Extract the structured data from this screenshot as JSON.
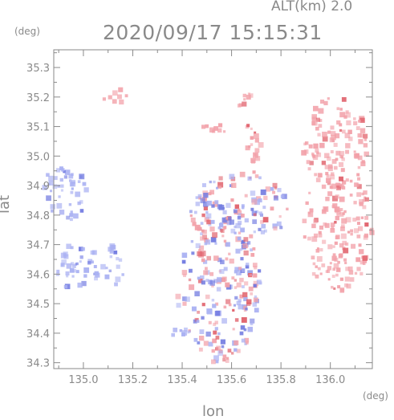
{
  "chart_data": {
    "type": "heatmap",
    "title": "2020/09/17 15:15:31",
    "subtitle": "ALT(km) 2.0",
    "xlabel": "lon",
    "ylabel": "lat",
    "x_unit": "(deg)",
    "y_unit": "(deg)",
    "xlim": [
      134.88,
      136.17
    ],
    "ylim": [
      34.28,
      35.36
    ],
    "x_ticks": [
      "135.0",
      "135.2",
      "135.4",
      "135.6",
      "135.8",
      "136.0"
    ],
    "y_ticks": [
      "34.3",
      "34.4",
      "34.5",
      "34.6",
      "34.7",
      "34.8",
      "34.9",
      "35.0",
      "35.1",
      "35.2",
      "35.3"
    ],
    "grid": false,
    "colors": {
      "positive": "#f2a0a8",
      "negative": "#a9b0f2",
      "strong_positive": "#e0606a",
      "strong_negative": "#6f78e0",
      "axis": "#8a8a8a"
    },
    "regions": [
      {
        "lon": 134.92,
        "lat": 34.87,
        "w": 0.1,
        "h": 0.09,
        "sign": "negative"
      },
      {
        "lon": 134.98,
        "lat": 34.62,
        "w": 0.09,
        "h": 0.09,
        "sign": "negative"
      },
      {
        "lon": 135.12,
        "lat": 34.63,
        "w": 0.05,
        "h": 0.07,
        "sign": "negative"
      },
      {
        "lon": 135.55,
        "lat": 34.55,
        "w": 0.17,
        "h": 0.25,
        "sign": "mixed"
      },
      {
        "lon": 135.63,
        "lat": 34.82,
        "w": 0.2,
        "h": 0.12,
        "sign": "mixed"
      },
      {
        "lon": 136.03,
        "lat": 34.75,
        "w": 0.14,
        "h": 0.22,
        "sign": "positive"
      },
      {
        "lon": 136.02,
        "lat": 35.04,
        "w": 0.13,
        "h": 0.16,
        "sign": "positive"
      },
      {
        "lon": 135.68,
        "lat": 35.03,
        "w": 0.04,
        "h": 0.09,
        "sign": "positive"
      },
      {
        "lon": 135.13,
        "lat": 35.2,
        "w": 0.05,
        "h": 0.03,
        "sign": "positive"
      },
      {
        "lon": 135.64,
        "lat": 35.2,
        "w": 0.04,
        "h": 0.03,
        "sign": "positive"
      },
      {
        "lon": 135.52,
        "lat": 35.09,
        "w": 0.06,
        "h": 0.02,
        "sign": "positive"
      },
      {
        "lon": 135.4,
        "lat": 34.4,
        "w": 0.04,
        "h": 0.02,
        "sign": "negative"
      }
    ]
  }
}
